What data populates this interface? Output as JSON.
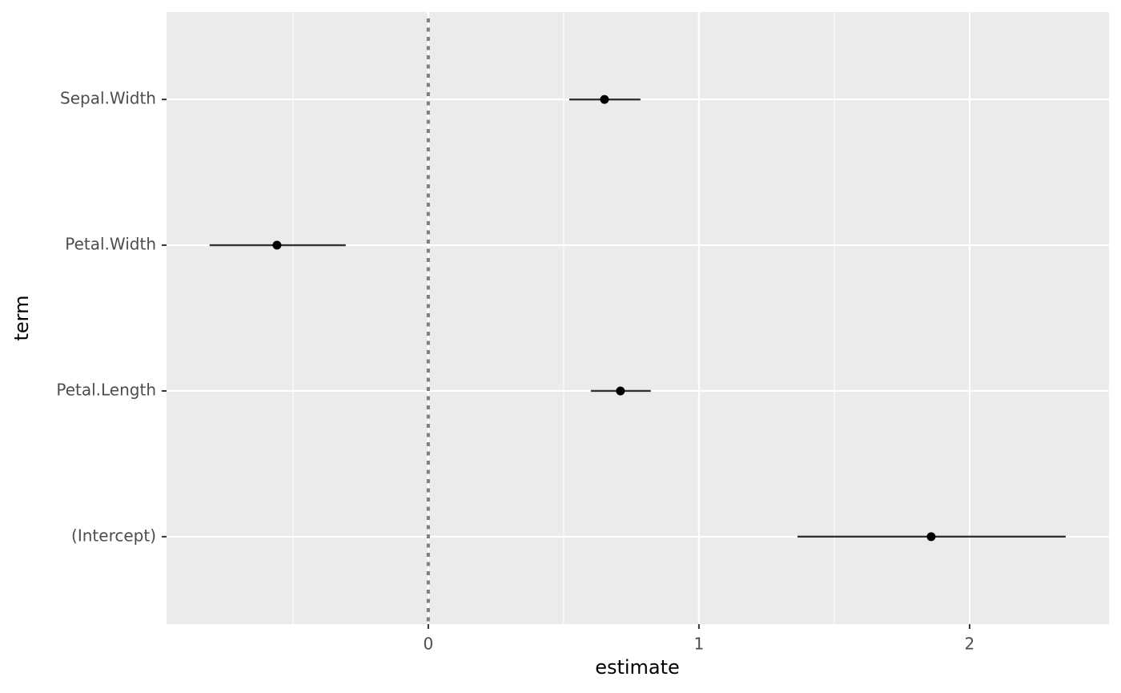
{
  "chart_data": {
    "type": "pointrange",
    "x_label": "estimate",
    "y_label": "term",
    "categories": [
      "(Intercept)",
      "Petal.Length",
      "Petal.Width",
      "Sepal.Width"
    ],
    "values": [
      1.858,
      0.71,
      -0.559,
      0.651
    ],
    "lower": [
      1.364,
      0.601,
      -0.808,
      0.521
    ],
    "upper": [
      2.355,
      0.822,
      -0.305,
      0.784
    ],
    "color": "#000000",
    "range_color": "#333333",
    "xlim": [
      -0.967,
      2.515
    ],
    "xticks": [
      0,
      1,
      2
    ],
    "xminor": [
      -0.5,
      0.5,
      1.5
    ],
    "reference_line": 0,
    "grid": true
  }
}
